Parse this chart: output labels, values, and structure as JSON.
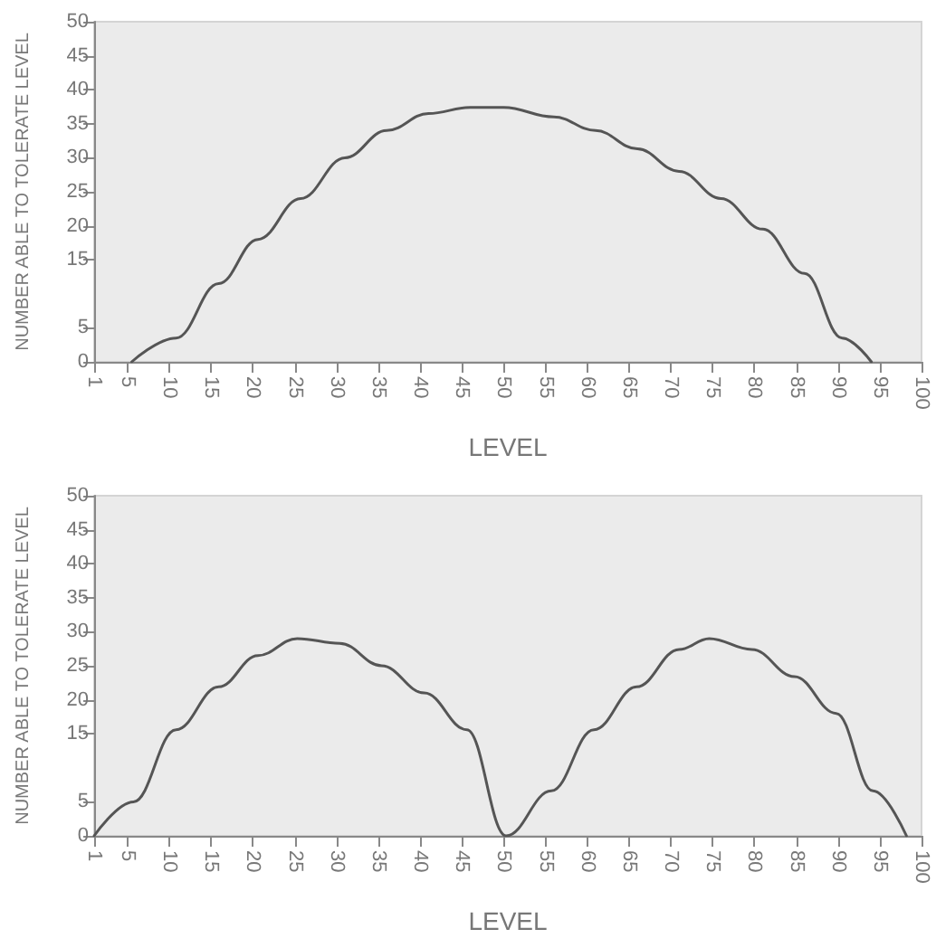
{
  "chart_data": [
    {
      "type": "line",
      "xlabel": "LEVEL",
      "ylabel": "NUMBER ABLE TO TOLERATE LEVEL",
      "xlim": [
        1,
        100
      ],
      "xticks": [
        1,
        5,
        10,
        15,
        20,
        25,
        30,
        35,
        40,
        45,
        50,
        55,
        60,
        65,
        70,
        75,
        80,
        85,
        90,
        95,
        100
      ],
      "ylim": [
        0,
        50
      ],
      "yticks": [
        0,
        5,
        15,
        20,
        25,
        30,
        35,
        40,
        45,
        50
      ],
      "grid": false,
      "marker": "none",
      "line_style": "solid",
      "series": [
        {
          "color": "#555555",
          "x": [
            5.5,
            10.8,
            15.9,
            20.6,
            25.7,
            31,
            36,
            41,
            46,
            50,
            56,
            61,
            66,
            71,
            76,
            81,
            86,
            90.5,
            94
          ],
          "values": [
            0,
            3.5,
            11.5,
            18,
            24,
            30,
            34,
            36.5,
            37.4,
            37.4,
            36,
            34,
            31.3,
            28,
            24,
            19.5,
            13,
            3.5,
            0
          ]
        }
      ]
    },
    {
      "type": "line",
      "xlabel": "LEVEL",
      "ylabel": "NUMBER ABLE TO TOLERATE LEVEL",
      "xlim": [
        1,
        100
      ],
      "xticks": [
        1,
        5,
        10,
        15,
        20,
        25,
        30,
        35,
        40,
        45,
        50,
        55,
        60,
        65,
        70,
        75,
        80,
        85,
        90,
        95,
        100
      ],
      "ylim": [
        0,
        50
      ],
      "yticks": [
        0,
        5,
        15,
        20,
        25,
        30,
        35,
        40,
        45,
        50
      ],
      "grid": false,
      "marker": "none",
      "line_style": "solid",
      "series": [
        {
          "color": "#555555",
          "x": [
            1,
            5.7,
            10.8,
            15.9,
            20.6,
            25.3,
            30.4,
            35.4,
            40.5,
            45.6,
            50.3,
            55.7,
            60.8,
            65.9,
            71,
            74.6,
            79.7,
            84.8,
            89.8,
            94.2,
            98.2
          ],
          "values": [
            0,
            5,
            15.6,
            21.9,
            26.5,
            29,
            28.3,
            25,
            21,
            15.6,
            0,
            6.6,
            15.6,
            21.9,
            27.4,
            29,
            27.4,
            23.4,
            18,
            6.6,
            0
          ]
        }
      ]
    }
  ]
}
